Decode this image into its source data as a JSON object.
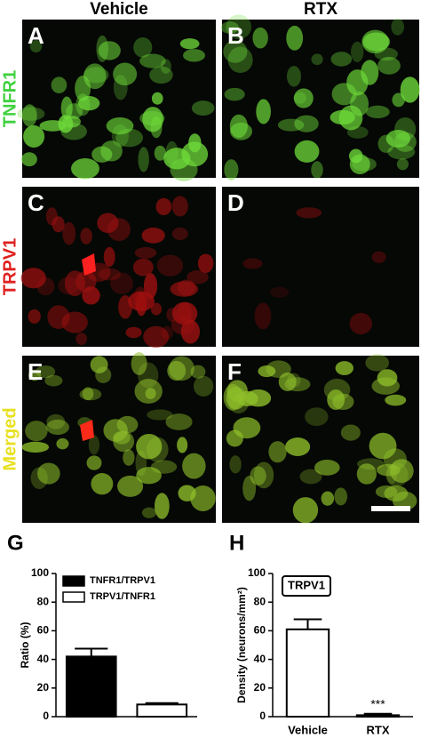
{
  "figure": {
    "columns": [
      "Vehicle",
      "RTX"
    ],
    "rows": [
      {
        "label": "TNFR1",
        "color": "#3fd13f"
      },
      {
        "label": "TRPV1",
        "color": "#e02020"
      },
      {
        "label": "Merged",
        "color": "#e8e020"
      }
    ],
    "panels": [
      "A",
      "B",
      "C",
      "D",
      "E",
      "F"
    ]
  },
  "chart_data": [
    {
      "type": "bar",
      "panel": "G",
      "ylabel": "Ratio (%)",
      "categories": [
        null
      ],
      "series": [
        {
          "name": "TNFR1/TRPV1",
          "color": "#000000",
          "values": [
            42
          ],
          "errors": [
            5.5
          ]
        },
        {
          "name": "TRPV1/TNFR1",
          "color": "#ffffff",
          "values": [
            8.5
          ],
          "errors": [
            1
          ]
        }
      ],
      "ylim": [
        0,
        100
      ],
      "yticks": [
        0,
        20,
        40,
        60,
        80,
        100
      ],
      "legend": "top-left"
    },
    {
      "type": "bar",
      "panel": "H",
      "ylabel": "Density (neurons/mm²)",
      "categories": [
        "Vehicle",
        "RTX"
      ],
      "series": [
        {
          "name": "TRPV1",
          "color": "#ffffff",
          "values": [
            61,
            1
          ],
          "errors": [
            7,
            1
          ]
        }
      ],
      "annotation": "***",
      "ylim": [
        0,
        100
      ],
      "yticks": [
        0,
        20,
        40,
        60,
        80,
        100
      ],
      "legend": "top-left",
      "legend_box": true
    }
  ]
}
